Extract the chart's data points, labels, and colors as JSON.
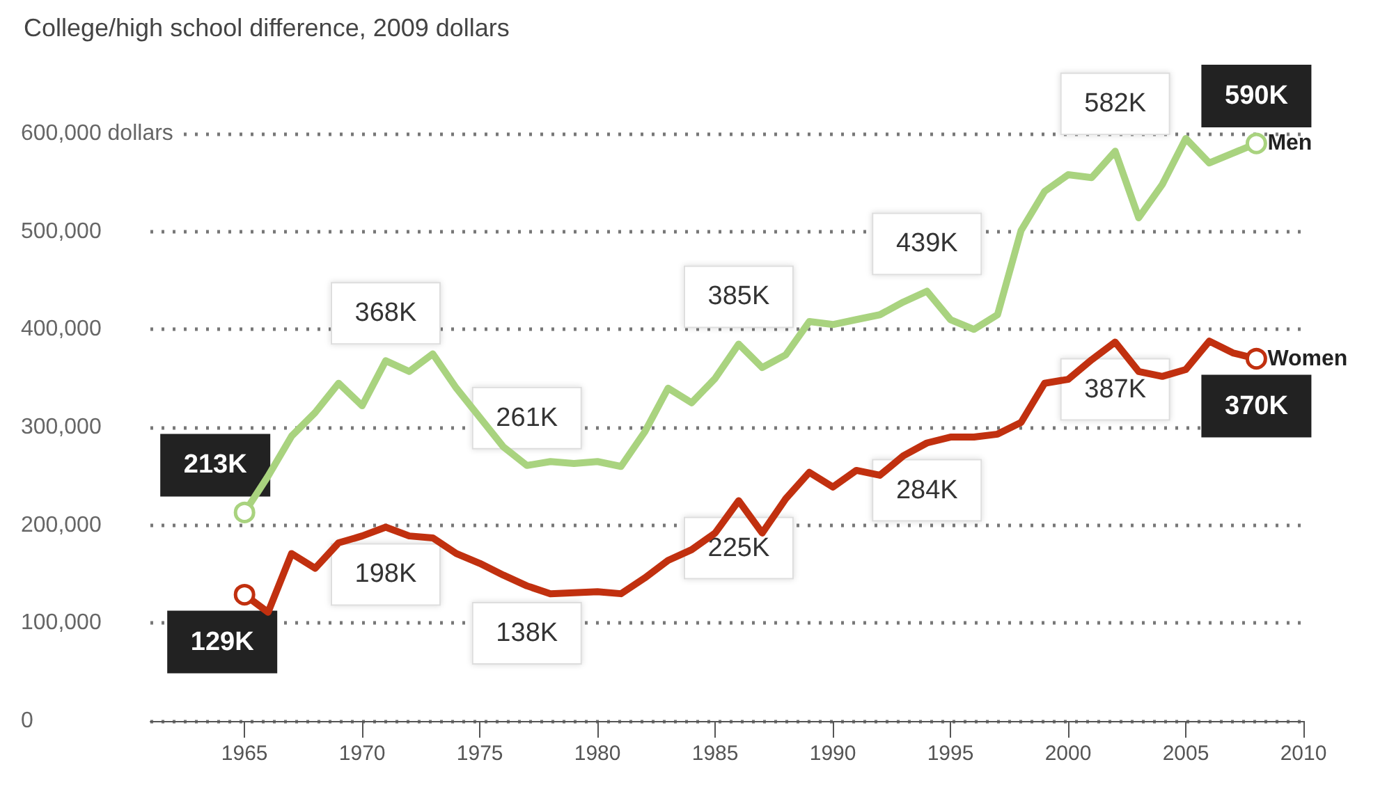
{
  "chart_data": {
    "type": "line",
    "title": "College/high school difference, 2009 dollars",
    "x": [
      1965,
      1966,
      1967,
      1968,
      1969,
      1970,
      1971,
      1972,
      1973,
      1974,
      1975,
      1976,
      1977,
      1978,
      1979,
      1980,
      1981,
      1982,
      1983,
      1984,
      1985,
      1986,
      1987,
      1988,
      1989,
      1990,
      1991,
      1992,
      1993,
      1994,
      1995,
      1996,
      1997,
      1998,
      1999,
      2000,
      2001,
      2002,
      2003,
      2004,
      2005,
      2006,
      2007,
      2008
    ],
    "series": [
      {
        "name": "Men",
        "color": "#a9d37f",
        "values": [
          213000,
          250000,
          291000,
          315000,
          345000,
          322000,
          368000,
          357000,
          375000,
          340000,
          310000,
          280000,
          261000,
          265000,
          263000,
          265000,
          260000,
          295000,
          340000,
          325000,
          350000,
          385000,
          361000,
          374000,
          408000,
          405000,
          410000,
          415000,
          428000,
          439000,
          410000,
          400000,
          415000,
          501000,
          541000,
          558000,
          555000,
          582000,
          514000,
          548000,
          595000,
          570000,
          580000,
          590000
        ]
      },
      {
        "name": "Women",
        "color": "#c1300f",
        "values": [
          129000,
          111000,
          171000,
          156000,
          182000,
          189000,
          198000,
          189000,
          187000,
          171000,
          161000,
          149000,
          138000,
          130000,
          131000,
          132000,
          130000,
          146000,
          164000,
          175000,
          192000,
          225000,
          192000,
          227000,
          254000,
          239000,
          256000,
          251000,
          271000,
          284000,
          290000,
          290000,
          293000,
          305000,
          345000,
          349000,
          369000,
          387000,
          357000,
          352000,
          359000,
          388000,
          376000,
          370000
        ]
      }
    ],
    "xlim": [
      1961,
      2010
    ],
    "xticks": [
      1965,
      1970,
      1975,
      1980,
      1985,
      1990,
      1995,
      2000,
      2005,
      2010
    ],
    "ylim": [
      0,
      600000
    ],
    "yticks": [
      {
        "value": 0,
        "label": "0"
      },
      {
        "value": 100000,
        "label": "100,000"
      },
      {
        "value": 200000,
        "label": "200,000"
      },
      {
        "value": 300000,
        "label": "300,000"
      },
      {
        "value": 400000,
        "label": "400,000"
      },
      {
        "value": 500000,
        "label": "500,000"
      },
      {
        "value": 600000,
        "label": "600,000 dollars"
      }
    ],
    "grid": "y",
    "legend": false,
    "line_style": "solid",
    "annotations": [
      {
        "text": "213K",
        "x": 1965,
        "y": 213000
      },
      {
        "text": "368K",
        "x": 1971,
        "y": 368000
      },
      {
        "text": "261K",
        "x": 1977,
        "y": 261000
      },
      {
        "text": "385K",
        "x": 1986,
        "y": 385000
      },
      {
        "text": "439K",
        "x": 1994,
        "y": 439000
      },
      {
        "text": "582K",
        "x": 2002,
        "y": 582000
      },
      {
        "text": "590K",
        "x": 2008,
        "y": 590000
      },
      {
        "text": "129K",
        "x": 1965,
        "y": 129000
      },
      {
        "text": "198K",
        "x": 1971,
        "y": 198000
      },
      {
        "text": "138K",
        "x": 1977,
        "y": 138000
      },
      {
        "text": "225K",
        "x": 1986,
        "y": 225000
      },
      {
        "text": "284K",
        "x": 1994,
        "y": 284000
      },
      {
        "text": "387K",
        "x": 2002,
        "y": 387000
      },
      {
        "text": "370K",
        "x": 2008,
        "y": 370000
      }
    ]
  }
}
